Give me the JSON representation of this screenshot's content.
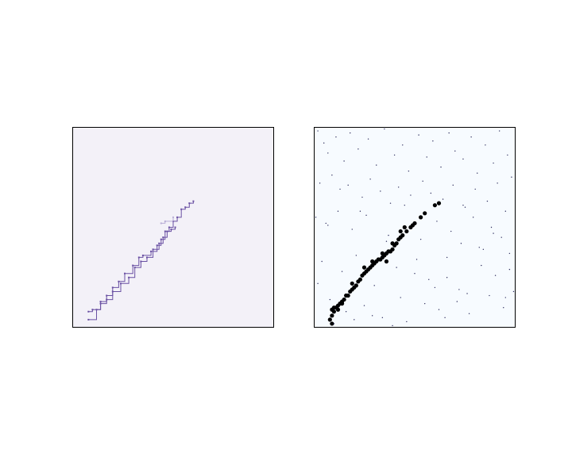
{
  "figure": {
    "background": "#ffffff"
  },
  "chart_data": [
    {
      "type": "line",
      "panel": "left",
      "title": "",
      "xlabel": "",
      "ylabel": "",
      "xlim": [
        0,
        1
      ],
      "ylim": [
        0,
        1
      ],
      "grid": false,
      "axis_ticks": false,
      "background_color": "#f3f1f8",
      "series": [
        {
          "style": "step-path",
          "color": "#6a51a3",
          "x": [
            0.08,
            0.1,
            0.14,
            0.17,
            0.2,
            0.23,
            0.26,
            0.3,
            0.33,
            0.35,
            0.39,
            0.42,
            0.44,
            0.46,
            0.48,
            0.5,
            0.52,
            0.54,
            0.56,
            0.58,
            0.6
          ],
          "y": [
            0.08,
            0.09,
            0.13,
            0.16,
            0.2,
            0.23,
            0.27,
            0.31,
            0.35,
            0.36,
            0.38,
            0.41,
            0.44,
            0.48,
            0.5,
            0.53,
            0.55,
            0.59,
            0.6,
            0.62,
            0.63
          ]
        },
        {
          "style": "step-path",
          "color": "#6a51a3",
          "x": [
            0.08,
            0.12,
            0.14,
            0.17,
            0.2,
            0.24,
            0.28,
            0.31,
            0.34,
            0.37,
            0.4,
            0.43,
            0.45,
            0.47,
            0.49,
            0.51
          ],
          "y": [
            0.04,
            0.09,
            0.12,
            0.14,
            0.18,
            0.22,
            0.25,
            0.3,
            0.33,
            0.35,
            0.39,
            0.42,
            0.45,
            0.48,
            0.49,
            0.5
          ]
        },
        {
          "style": "step-path",
          "color": "#b9aed6",
          "x": [
            0.44,
            0.46,
            0.5
          ],
          "y": [
            0.52,
            0.53,
            0.55
          ]
        }
      ]
    },
    {
      "type": "scatter",
      "panel": "right",
      "title": "",
      "xlabel": "",
      "ylabel": "",
      "xlim": [
        0,
        1
      ],
      "ylim": [
        0,
        1
      ],
      "grid": false,
      "axis_ticks": false,
      "background_color": "#f7fbff",
      "series": [
        {
          "marker": "dot-large",
          "color": "#000000",
          "x": [
            0.08,
            0.09,
            0.09,
            0.1,
            0.11,
            0.12,
            0.13,
            0.14,
            0.15,
            0.16,
            0.17,
            0.18,
            0.19,
            0.2,
            0.21,
            0.22,
            0.23,
            0.24,
            0.25,
            0.26,
            0.27,
            0.28,
            0.29,
            0.3,
            0.31,
            0.32,
            0.33,
            0.34,
            0.35,
            0.36,
            0.37,
            0.38,
            0.39,
            0.4,
            0.41,
            0.42,
            0.43,
            0.44,
            0.46,
            0.48,
            0.5,
            0.53,
            0.55,
            0.6,
            0.62,
            0.09,
            0.1,
            0.12,
            0.14,
            0.19,
            0.25,
            0.29,
            0.34,
            0.36,
            0.39,
            0.43,
            0.45,
            0.49
          ],
          "y": [
            0.04,
            0.06,
            0.09,
            0.1,
            0.1,
            0.11,
            0.12,
            0.13,
            0.14,
            0.16,
            0.16,
            0.18,
            0.19,
            0.2,
            0.21,
            0.23,
            0.24,
            0.26,
            0.27,
            0.28,
            0.29,
            0.3,
            0.31,
            0.32,
            0.33,
            0.34,
            0.34,
            0.35,
            0.36,
            0.37,
            0.38,
            0.38,
            0.39,
            0.41,
            0.42,
            0.44,
            0.45,
            0.46,
            0.48,
            0.5,
            0.52,
            0.55,
            0.57,
            0.61,
            0.62,
            0.02,
            0.08,
            0.09,
            0.12,
            0.22,
            0.3,
            0.33,
            0.37,
            0.33,
            0.42,
            0.48,
            0.5,
            0.51
          ]
        },
        {
          "marker": "dot-small",
          "color": "#2f2f5f",
          "x": [
            0.02,
            0.05,
            0.07,
            0.11,
            0.15,
            0.18,
            0.22,
            0.27,
            0.31,
            0.35,
            0.4,
            0.44,
            0.47,
            0.52,
            0.56,
            0.59,
            0.63,
            0.67,
            0.7,
            0.74,
            0.78,
            0.81,
            0.85,
            0.89,
            0.92,
            0.96,
            0.98,
            0.03,
            0.09,
            0.13,
            0.17,
            0.24,
            0.28,
            0.33,
            0.38,
            0.42,
            0.48,
            0.54,
            0.58,
            0.64,
            0.69,
            0.75,
            0.8,
            0.86,
            0.91,
            0.95,
            0.01,
            0.06,
            0.12,
            0.19,
            0.26,
            0.37,
            0.45,
            0.53,
            0.61,
            0.68,
            0.73,
            0.79,
            0.84,
            0.88,
            0.93,
            0.97,
            0.04,
            0.14,
            0.21,
            0.3,
            0.41,
            0.5,
            0.57,
            0.66,
            0.72,
            0.83,
            0.9,
            0.99,
            0.08,
            0.16,
            0.25,
            0.34,
            0.43,
            0.55,
            0.62,
            0.71,
            0.77,
            0.87,
            0.94,
            0.02,
            0.1,
            0.2,
            0.29,
            0.39,
            0.46,
            0.6,
            0.65,
            0.76,
            0.82,
            0.97,
            0.07,
            0.23,
            0.36,
            0.51,
            0.66,
            0.74,
            0.89,
            0.95
          ],
          "y": [
            0.98,
            0.92,
            0.87,
            0.95,
            0.83,
            0.97,
            0.89,
            0.94,
            0.81,
            0.99,
            0.86,
            0.91,
            0.78,
            0.96,
            0.85,
            0.93,
            0.8,
            0.97,
            0.88,
            0.84,
            0.95,
            0.77,
            0.91,
            0.82,
            0.98,
            0.86,
            0.75,
            0.72,
            0.76,
            0.69,
            0.71,
            0.65,
            0.74,
            0.68,
            0.62,
            0.7,
            0.66,
            0.73,
            0.67,
            0.64,
            0.71,
            0.6,
            0.69,
            0.63,
            0.72,
            0.58,
            0.55,
            0.52,
            0.58,
            0.49,
            0.56,
            0.46,
            0.61,
            0.44,
            0.53,
            0.48,
            0.42,
            0.55,
            0.39,
            0.5,
            0.45,
            0.37,
            0.33,
            0.28,
            0.36,
            0.21,
            0.3,
            0.27,
            0.24,
            0.35,
            0.19,
            0.31,
            0.26,
            0.18,
            0.14,
            0.08,
            0.11,
            0.05,
            0.15,
            0.12,
            0.09,
            0.13,
            0.07,
            0.16,
            0.1,
            0.22,
            0.02,
            0.04,
            0.06,
            0.01,
            0.03,
            0.2,
            0.05,
            0.17,
            0.4,
            0.29,
            0.51,
            0.58,
            0.43,
            0.34,
            0.25,
            0.61,
            0.47,
            0.15
          ]
        }
      ]
    }
  ]
}
